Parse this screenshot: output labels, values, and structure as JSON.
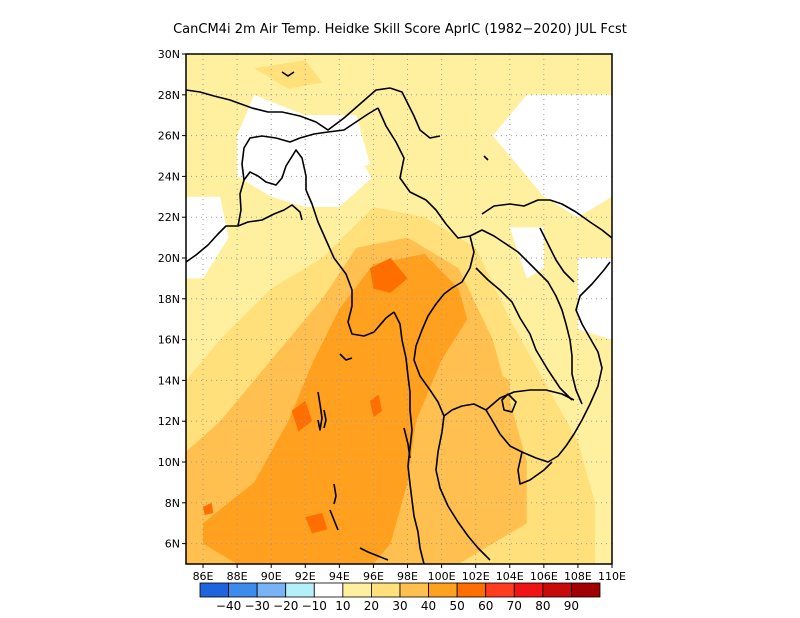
{
  "title": "CanCM4i  2m Air Temp. Heidke Skill Score AprIC (1982−2020) JUL Fcst",
  "map": {
    "lat_range": [
      5,
      30
    ],
    "lon_range": [
      85,
      110
    ],
    "lat_ticks": [
      "30N",
      "28N",
      "26N",
      "24N",
      "22N",
      "20N",
      "18N",
      "16N",
      "14N",
      "12N",
      "10N",
      "8N",
      "6N"
    ],
    "lon_ticks": [
      "86E",
      "88E",
      "90E",
      "92E",
      "94E",
      "96E",
      "98E",
      "100E",
      "102E",
      "104E",
      "106E",
      "108E",
      "110E"
    ],
    "gridlines": true,
    "colorbar": {
      "colors": [
        "#1e64dc",
        "#3c8cf0",
        "#78b4f5",
        "#b4f0fa",
        "#ffffff",
        "#fff0a0",
        "#ffe07a",
        "#ffc050",
        "#ffa01e",
        "#ff6e00",
        "#ff3c1e",
        "#f01414",
        "#c80a0a",
        "#a00000"
      ],
      "labels": [
        "−40",
        "−30",
        "−20",
        "−10",
        "10",
        "20",
        "30",
        "40",
        "50",
        "60",
        "70",
        "80",
        "90"
      ]
    },
    "fields": [
      {
        "level": "20",
        "points": [
          [
            85,
            30
          ],
          [
            110,
            30
          ],
          [
            110,
            5
          ],
          [
            85,
            5
          ]
        ]
      },
      {
        "level": "10",
        "points": [
          [
            89,
            28
          ],
          [
            92,
            27
          ],
          [
            95,
            27
          ],
          [
            96,
            24
          ],
          [
            94,
            22.5
          ],
          [
            92,
            22.5
          ],
          [
            90,
            23
          ],
          [
            88,
            24
          ],
          [
            88,
            26
          ]
        ]
      },
      {
        "level": "10",
        "points": [
          [
            105,
            28
          ],
          [
            110,
            28
          ],
          [
            110,
            23
          ],
          [
            108,
            22
          ],
          [
            106,
            23
          ],
          [
            104,
            25
          ],
          [
            103,
            26
          ]
        ]
      },
      {
        "level": "10",
        "points": [
          [
            85,
            23
          ],
          [
            87,
            23
          ],
          [
            87.5,
            21
          ],
          [
            86,
            19
          ],
          [
            85,
            19
          ]
        ]
      },
      {
        "level": "10",
        "points": [
          [
            104,
            21.5
          ],
          [
            106,
            21.5
          ],
          [
            106,
            19.5
          ],
          [
            105,
            19
          ]
        ]
      },
      {
        "level": "10",
        "points": [
          [
            108,
            20
          ],
          [
            110,
            20
          ],
          [
            110,
            16
          ],
          [
            108,
            16.5
          ]
        ]
      },
      {
        "level": "30",
        "points": [
          [
            85,
            14
          ],
          [
            87,
            16
          ],
          [
            90,
            18.5
          ],
          [
            93,
            20
          ],
          [
            96,
            22.5
          ],
          [
            99,
            22
          ],
          [
            102,
            20.5
          ],
          [
            104,
            17
          ],
          [
            106,
            14
          ],
          [
            108,
            11
          ],
          [
            109,
            8
          ],
          [
            109,
            5
          ],
          [
            85,
            5
          ]
        ]
      },
      {
        "level": "40",
        "points": [
          [
            85,
            10.5
          ],
          [
            87,
            12
          ],
          [
            89,
            14
          ],
          [
            91,
            16
          ],
          [
            93,
            18
          ],
          [
            95,
            20.5
          ],
          [
            98,
            21
          ],
          [
            101,
            19.5
          ],
          [
            103,
            16
          ],
          [
            104,
            13
          ],
          [
            105,
            10
          ],
          [
            105,
            7
          ],
          [
            101,
            5
          ],
          [
            85,
            5
          ]
        ]
      },
      {
        "level": "50",
        "points": [
          [
            86,
            7
          ],
          [
            89,
            9
          ],
          [
            91,
            12
          ],
          [
            92.5,
            15
          ],
          [
            94,
            17.5
          ],
          [
            96,
            19.7
          ],
          [
            99,
            20.2
          ],
          [
            101,
            18.5
          ],
          [
            101.5,
            17
          ],
          [
            100,
            15
          ],
          [
            98.5,
            12
          ],
          [
            98,
            9
          ],
          [
            97,
            6
          ],
          [
            96,
            5
          ],
          [
            88,
            5
          ],
          [
            86,
            6
          ]
        ]
      },
      {
        "level": "40",
        "points": [
          [
            99,
            11.5
          ],
          [
            101,
            11
          ],
          [
            103,
            11
          ],
          [
            104,
            12.5
          ],
          [
            104,
            14
          ],
          [
            103,
            14.5
          ],
          [
            101,
            14.5
          ]
        ]
      },
      {
        "level": "30",
        "points": [
          [
            89,
            29.3
          ],
          [
            92,
            29.7
          ],
          [
            93,
            28.6
          ],
          [
            91,
            28.3
          ]
        ]
      },
      {
        "level": "20",
        "points": [
          [
            95.5,
            24.5
          ],
          [
            97,
            25
          ],
          [
            98,
            23.5
          ],
          [
            96.5,
            23
          ]
        ]
      },
      {
        "level": "60",
        "points": [
          [
            95.8,
            19.5
          ],
          [
            97,
            20
          ],
          [
            98,
            19
          ],
          [
            97,
            18.3
          ],
          [
            96,
            18.5
          ]
        ]
      },
      {
        "level": "60",
        "points": [
          [
            91.2,
            12.5
          ],
          [
            92,
            13
          ],
          [
            92.4,
            12
          ],
          [
            91.6,
            11.5
          ]
        ]
      },
      {
        "level": "60",
        "points": [
          [
            92,
            7.3
          ],
          [
            93,
            7.5
          ],
          [
            93.3,
            6.7
          ],
          [
            92.4,
            6.5
          ]
        ]
      },
      {
        "level": "60",
        "points": [
          [
            95.8,
            13
          ],
          [
            96.3,
            13.3
          ],
          [
            96.5,
            12.5
          ],
          [
            96,
            12.2
          ]
        ]
      },
      {
        "level": "60",
        "points": [
          [
            86,
            7.8
          ],
          [
            86.5,
            8
          ],
          [
            86.6,
            7.5
          ],
          [
            86.1,
            7.4
          ]
        ]
      }
    ]
  }
}
